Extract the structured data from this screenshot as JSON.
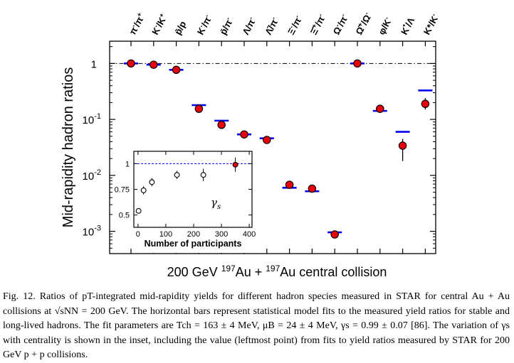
{
  "chart_data": [
    {
      "type": "scatter",
      "title": "",
      "ylabel": "Mid-rapidity hadron ratios",
      "xlabel": "200 GeV 197Au + 197Au central collision",
      "xlabel_parts": [
        "200 GeV ",
        "197",
        "Au + ",
        "197",
        "Au central collision"
      ],
      "yscale": "log",
      "ylim": [
        0.0004,
        2.5
      ],
      "yticks": [
        {
          "value": 1,
          "label": "1",
          "exp": ""
        },
        {
          "value": 0.1,
          "label": "10",
          "exp": "-1"
        },
        {
          "value": 0.01,
          "label": "10",
          "exp": "-2"
        },
        {
          "value": 0.001,
          "label": "10",
          "exp": "-3"
        }
      ],
      "categories": [
        "π-/π+",
        "K-/K+",
        "p̄/p",
        "K-/π-",
        "p̄/π-",
        "Λ/π-",
        "Λ̄/π-",
        "Ξ-/π-",
        "Ξ̄+/π-",
        "Ω-/π-",
        "Ω̄+/Ω-",
        "φ/K-",
        "K*/Λ",
        "K*/K-"
      ],
      "category_labels": [
        {
          "base": "π",
          "sup": "-",
          "mid": "/π",
          "sup2": "+"
        },
        {
          "base": "K",
          "sup": "-",
          "mid": "/K",
          "sup2": "+"
        },
        {
          "base": "p̄",
          "sup": "",
          "mid": "/p",
          "sup2": ""
        },
        {
          "base": "K",
          "sup": "-",
          "mid": "/π",
          "sup2": "-"
        },
        {
          "base": "p̄",
          "sup": "",
          "mid": "/π",
          "sup2": "-"
        },
        {
          "base": "Λ",
          "sup": "",
          "mid": "/π",
          "sup2": "-"
        },
        {
          "base": "Λ̄",
          "sup": "",
          "mid": "/π",
          "sup2": "-"
        },
        {
          "base": "Ξ",
          "sup": "-",
          "mid": "/π",
          "sup2": "-"
        },
        {
          "base": "Ξ̄",
          "sup": "+",
          "mid": "/π",
          "sup2": "-"
        },
        {
          "base": "Ω",
          "sup": "-",
          "mid": "/π",
          "sup2": "-"
        },
        {
          "base": "Ω̄",
          "sup": "+",
          "mid": "/Ω",
          "sup2": "-"
        },
        {
          "base": "φ",
          "sup": "",
          "mid": "/K",
          "sup2": "-"
        },
        {
          "base": "K",
          "sup": "*",
          "mid": "/Λ",
          "sup2": ""
        },
        {
          "base": "K*",
          "sup": "",
          "mid": "/K",
          "sup2": "-"
        }
      ],
      "series": [
        {
          "values": [
            1.0,
            0.95,
            0.77,
            0.155,
            0.08,
            0.054,
            0.043,
            0.0068,
            0.0058,
            0.00088,
            1.0,
            0.155,
            0.034,
            0.19
          ],
          "err_low": [
            0.96,
            0.91,
            0.73,
            0.145,
            0.074,
            0.05,
            0.04,
            0.0062,
            0.0052,
            0.00083,
            0.96,
            0.145,
            0.018,
            0.15
          ],
          "err_high": [
            1.04,
            0.99,
            0.81,
            0.165,
            0.086,
            0.058,
            0.046,
            0.0074,
            0.0064,
            0.00093,
            1.04,
            0.165,
            0.045,
            0.24
          ],
          "color": "#e8000b"
        },
        {
          "values": [
            1.0,
            0.95,
            0.77,
            0.18,
            0.095,
            0.054,
            0.046,
            0.006,
            0.0052,
            0.00096,
            1.0,
            0.142,
            0.06,
            0.33
          ],
          "color": "#0000ee"
        }
      ],
      "reference_line": 1
    },
    {
      "type": "scatter",
      "title": "",
      "xlabel": "Number of participants",
      "annotation": "γs",
      "xlim": [
        -15,
        410
      ],
      "ylim": [
        0.38,
        1.12
      ],
      "xticks": [
        0,
        100,
        200,
        300,
        400
      ],
      "yticks": [
        {
          "value": 1,
          "label": "1"
        },
        {
          "value": 0.75,
          "label": "0.75"
        },
        {
          "value": 0.5,
          "label": "0.5"
        }
      ],
      "x": [
        2,
        20,
        50,
        140,
        235,
        350
      ],
      "values": [
        0.54,
        0.74,
        0.82,
        0.89,
        0.89,
        0.99
      ],
      "err": [
        0.02,
        0.04,
        0.04,
        0.04,
        0.06,
        0.07
      ],
      "filled": [
        false,
        false,
        false,
        false,
        false,
        true
      ],
      "reference_line": 1
    }
  ],
  "caption": "Fig. 12. Ratios of pT-integrated mid-rapidity yields for different hadron species measured in STAR for central Au + Au collisions at √sNN = 200 GeV. The horizontal bars represent statistical model fits to the measured yield ratios for stable and long-lived hadrons. The fit parameters are Tch = 163 ± 4 MeV, μB = 24 ± 4 MeV, γs = 0.99 ± 0.07 [86]. The variation of γs with centrality is shown in the inset, including the value (leftmost point) from fits to yield ratios measured by STAR for 200 GeV p + p collisions.",
  "colors": {
    "marker": "#e8000b",
    "fit": "#0000ee",
    "axis": "#000000"
  }
}
